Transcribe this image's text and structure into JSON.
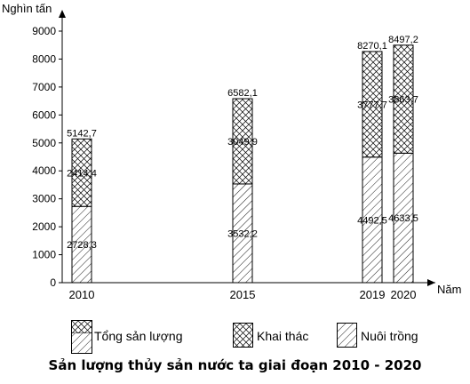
{
  "chart_data": {
    "type": "stacked-bar",
    "ylabel": "Nghìn tấn",
    "xlabel": "Năm",
    "ylim": [
      0,
      9000
    ],
    "yticks": [
      0,
      1000,
      2000,
      3000,
      4000,
      5000,
      6000,
      7000,
      8000,
      9000
    ],
    "categories": [
      "2010",
      "2015",
      "2019",
      "2020"
    ],
    "series": [
      {
        "name": "Nuôi trồng",
        "values": [
          2728.3,
          3532.2,
          4492.5,
          4633.5
        ],
        "labels": [
          "2728,3",
          "3532,2",
          "4492,5",
          "4633,5"
        ],
        "pattern": "hatch"
      },
      {
        "name": "Khai thác",
        "values": [
          2414.4,
          3049.9,
          3777.7,
          3863.7
        ],
        "labels": [
          "2414,4",
          "3049,9",
          "3777,7",
          "3863,7"
        ],
        "pattern": "crosshatch"
      }
    ],
    "totals": {
      "name": "Tổng sản lượng",
      "values": [
        5142.7,
        6582.1,
        8270.1,
        8497.2
      ],
      "labels": [
        "5142,7",
        "6582,1",
        "8270,1",
        "8497,2"
      ]
    },
    "legend_position": "bottom",
    "grid": false
  },
  "title": "Sản lượng thủy sản nước ta giai đoạn 2010 - 2020"
}
